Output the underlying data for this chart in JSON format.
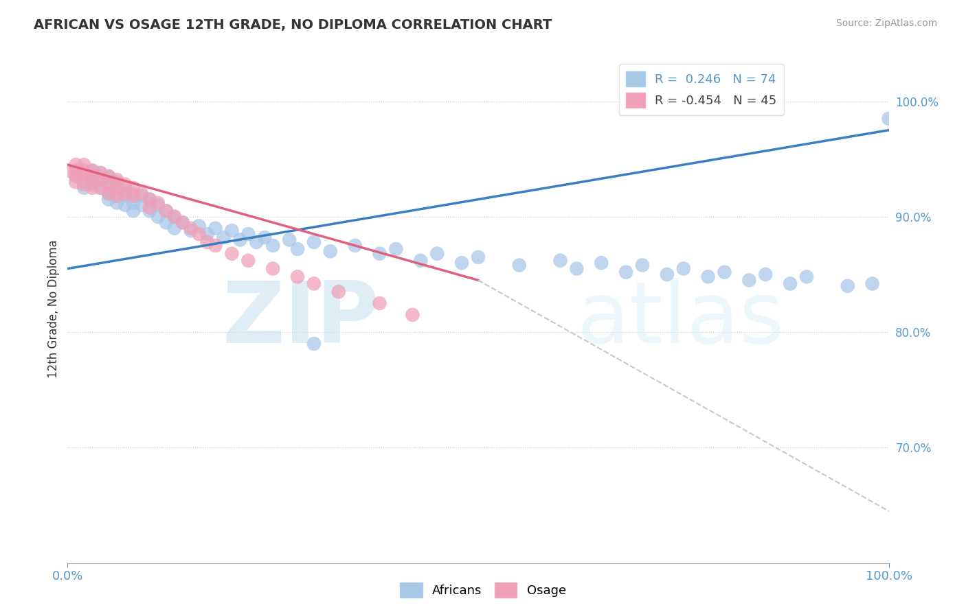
{
  "title": "AFRICAN VS OSAGE 12TH GRADE, NO DIPLOMA CORRELATION CHART",
  "source": "Source: ZipAtlas.com",
  "ylabel": "12th Grade, No Diploma",
  "legend_r_african": "R = ",
  "legend_r_african_val": "0.246",
  "legend_n_african": "N = ",
  "legend_n_african_val": "74",
  "legend_r_osage": "R = -0.454",
  "legend_n_osage": "N = 45",
  "blue_color": "#a8c8e8",
  "pink_color": "#f0a0b8",
  "blue_line_color": "#3a7fc0",
  "pink_line_color": "#e06080",
  "dashed_line_color": "#c8c8c8",
  "xlim": [
    0.0,
    1.0
  ],
  "ylim": [
    0.6,
    1.04
  ],
  "yticks": [
    1.0,
    0.9,
    0.8,
    0.7
  ],
  "ytick_labels": [
    "100.0%",
    "90.0%",
    "80.0%",
    "70.0%"
  ],
  "blue_trend_x": [
    0.0,
    1.0
  ],
  "blue_trend_y": [
    0.855,
    0.975
  ],
  "pink_trend_x": [
    0.0,
    0.5
  ],
  "pink_trend_y": [
    0.945,
    0.845
  ],
  "dashed_trend_x": [
    0.5,
    1.0
  ],
  "dashed_trend_y": [
    0.845,
    0.645
  ],
  "africans_x": [
    0.01,
    0.02,
    0.02,
    0.03,
    0.03,
    0.03,
    0.04,
    0.04,
    0.04,
    0.05,
    0.05,
    0.05,
    0.05,
    0.06,
    0.06,
    0.06,
    0.06,
    0.07,
    0.07,
    0.07,
    0.08,
    0.08,
    0.08,
    0.09,
    0.09,
    0.1,
    0.1,
    0.11,
    0.11,
    0.12,
    0.12,
    0.13,
    0.13,
    0.14,
    0.15,
    0.16,
    0.17,
    0.18,
    0.19,
    0.2,
    0.21,
    0.22,
    0.23,
    0.24,
    0.25,
    0.27,
    0.28,
    0.3,
    0.32,
    0.35,
    0.38,
    0.4,
    0.43,
    0.45,
    0.48,
    0.5,
    0.55,
    0.6,
    0.62,
    0.65,
    0.68,
    0.7,
    0.73,
    0.75,
    0.78,
    0.8,
    0.83,
    0.85,
    0.88,
    0.9,
    0.95,
    0.98,
    1.0,
    0.3
  ],
  "africans_y": [
    0.935,
    0.93,
    0.925,
    0.94,
    0.935,
    0.928,
    0.938,
    0.932,
    0.925,
    0.935,
    0.928,
    0.92,
    0.915,
    0.93,
    0.925,
    0.918,
    0.912,
    0.925,
    0.918,
    0.91,
    0.92,
    0.912,
    0.905,
    0.918,
    0.91,
    0.915,
    0.905,
    0.91,
    0.9,
    0.905,
    0.895,
    0.9,
    0.89,
    0.895,
    0.888,
    0.892,
    0.885,
    0.89,
    0.882,
    0.888,
    0.88,
    0.885,
    0.878,
    0.882,
    0.875,
    0.88,
    0.872,
    0.878,
    0.87,
    0.875,
    0.868,
    0.872,
    0.862,
    0.868,
    0.86,
    0.865,
    0.858,
    0.862,
    0.855,
    0.86,
    0.852,
    0.858,
    0.85,
    0.855,
    0.848,
    0.852,
    0.845,
    0.85,
    0.842,
    0.848,
    0.84,
    0.842,
    0.985,
    0.79
  ],
  "osage_x": [
    0.0,
    0.01,
    0.01,
    0.01,
    0.01,
    0.02,
    0.02,
    0.02,
    0.02,
    0.03,
    0.03,
    0.03,
    0.03,
    0.04,
    0.04,
    0.04,
    0.05,
    0.05,
    0.05,
    0.06,
    0.06,
    0.06,
    0.07,
    0.07,
    0.08,
    0.08,
    0.09,
    0.1,
    0.1,
    0.11,
    0.12,
    0.13,
    0.14,
    0.15,
    0.16,
    0.17,
    0.18,
    0.2,
    0.22,
    0.25,
    0.28,
    0.3,
    0.33,
    0.38,
    0.42
  ],
  "osage_y": [
    0.94,
    0.945,
    0.94,
    0.935,
    0.93,
    0.945,
    0.94,
    0.935,
    0.928,
    0.94,
    0.935,
    0.93,
    0.925,
    0.938,
    0.932,
    0.925,
    0.935,
    0.928,
    0.92,
    0.932,
    0.925,
    0.918,
    0.928,
    0.92,
    0.925,
    0.918,
    0.92,
    0.915,
    0.908,
    0.912,
    0.905,
    0.9,
    0.895,
    0.89,
    0.885,
    0.878,
    0.875,
    0.868,
    0.862,
    0.855,
    0.848,
    0.842,
    0.835,
    0.825,
    0.815
  ]
}
